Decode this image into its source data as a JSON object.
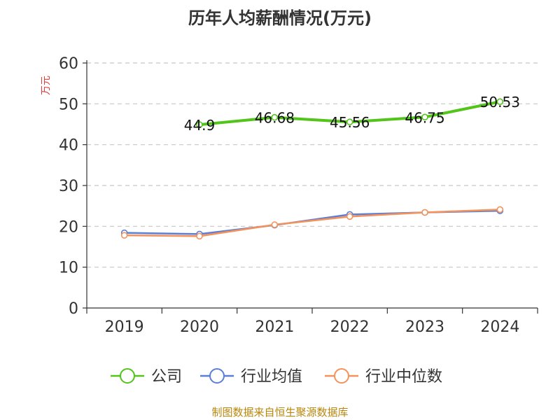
{
  "chart_data": {
    "type": "line",
    "title": "历年人均薪酬情况(万元)",
    "ylabel": "万元",
    "xlabel": "",
    "ylim": [
      0,
      60
    ],
    "yticks": [
      0,
      10,
      20,
      30,
      40,
      50,
      60
    ],
    "grid": true,
    "legend_position": "bottom",
    "categories": [
      "2019",
      "2020",
      "2021",
      "2022",
      "2023",
      "2024"
    ],
    "series": [
      {
        "name": "公司",
        "color": "#52c41a",
        "values": [
          null,
          44.9,
          46.68,
          45.56,
          46.75,
          50.53
        ],
        "labels": [
          "",
          "44.9",
          "46.68",
          "45.56",
          "46.75",
          "50.53"
        ]
      },
      {
        "name": "行业均值",
        "color": "#5b7fd6",
        "values": [
          18.4,
          18.1,
          20.3,
          22.9,
          23.4,
          23.8
        ]
      },
      {
        "name": "行业中位数",
        "color": "#f4925b",
        "values": [
          17.8,
          17.6,
          20.4,
          22.4,
          23.4,
          24.1
        ]
      }
    ],
    "source": "制图数据来自恒生聚源数据库"
  }
}
